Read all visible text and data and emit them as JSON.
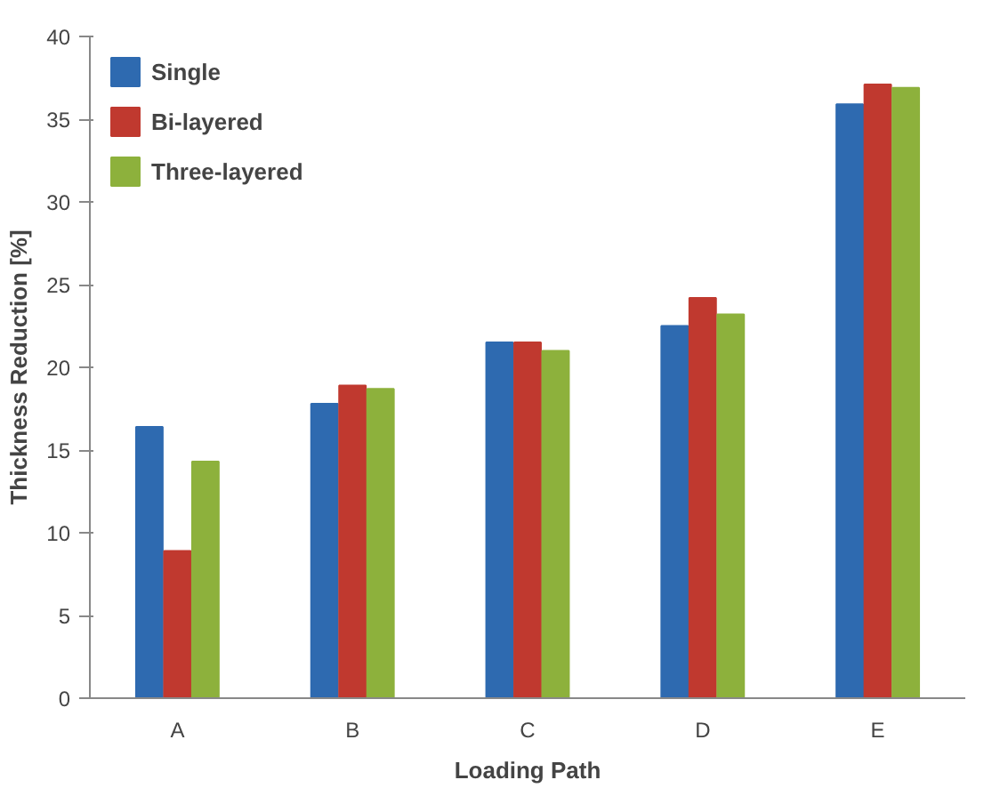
{
  "chart_data": {
    "type": "bar",
    "xlabel": "Loading Path",
    "ylabel": "Thickness Reduction [%]",
    "categories": [
      "A",
      "B",
      "C",
      "D",
      "E"
    ],
    "series": [
      {
        "name": "Single",
        "color": "#2e6ab0",
        "values": [
          16.4,
          17.8,
          21.5,
          22.5,
          35.9
        ]
      },
      {
        "name": "Bi-layered",
        "color": "#c0392f",
        "values": [
          8.9,
          18.9,
          21.5,
          24.2,
          37.1
        ]
      },
      {
        "name": "Three-layered",
        "color": "#8db13c",
        "values": [
          14.3,
          18.7,
          21.0,
          23.2,
          36.9
        ]
      }
    ],
    "ylim": [
      0,
      40
    ],
    "yticks": [
      0,
      5,
      10,
      15,
      20,
      25,
      30,
      35,
      40
    ],
    "grid": false,
    "legend": "top left"
  }
}
